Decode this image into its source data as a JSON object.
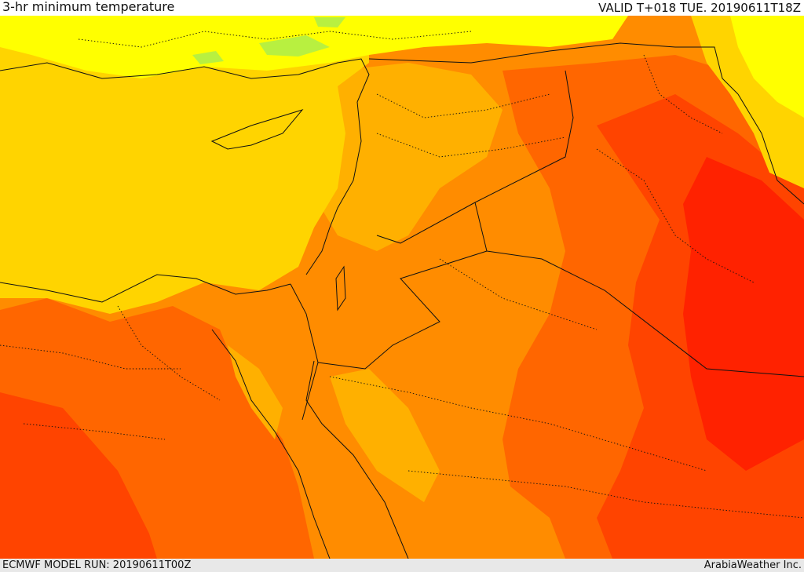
{
  "header": {
    "title": "3-hr minimum temperature",
    "valid": "VALID T+018 TUE. 20190611T18Z"
  },
  "footer": {
    "model_run": "ECMWF MODEL RUN: 20190611T00Z",
    "credit": "ArabiaWeather Inc."
  },
  "map": {
    "field": "3-hr minimum temperature",
    "colors": {
      "light_green": "#b8f040",
      "yellow": "#ffff00",
      "gold": "#ffd400",
      "amber": "#ffb000",
      "orange": "#ff8c00",
      "dark_orange": "#ff6600",
      "red_orange": "#ff4400",
      "red": "#ff2200",
      "border": "#111111"
    }
  }
}
